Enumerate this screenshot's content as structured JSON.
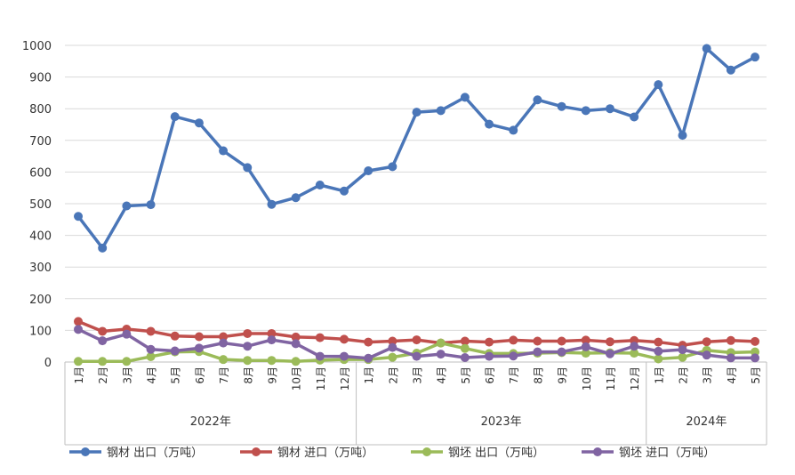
{
  "chart_data": {
    "type": "line",
    "title": "",
    "ylim": [
      0,
      1000
    ],
    "yticks": [
      0,
      100,
      200,
      300,
      400,
      500,
      600,
      700,
      800,
      900,
      1000
    ],
    "grid": true,
    "legend_position": "bottom",
    "groups": [
      {
        "label": "2022年",
        "months": [
          "1月",
          "2月",
          "3月",
          "4月",
          "5月",
          "6月",
          "7月",
          "8月",
          "9月",
          "10月",
          "11月",
          "12月"
        ]
      },
      {
        "label": "2023年",
        "months": [
          "1月",
          "2月",
          "3月",
          "4月",
          "5月",
          "6月",
          "7月",
          "8月",
          "9月",
          "10月",
          "11月",
          "12月"
        ]
      },
      {
        "label": "2024年",
        "months": [
          "1月",
          "2月",
          "3月",
          "4月",
          "5月"
        ]
      }
    ],
    "series": [
      {
        "name": "钢材 出口（万吨）",
        "color": "#4a76b8",
        "values": [
          460,
          360,
          493,
          497,
          775,
          755,
          667,
          614,
          498,
          519,
          559,
          540,
          604,
          617,
          789,
          794,
          836,
          751,
          732,
          828,
          807,
          794,
          800,
          774,
          876,
          716,
          990,
          922,
          963
        ]
      },
      {
        "name": "钢材 进口（万吨）",
        "color": "#c0504d",
        "values": [
          128,
          97,
          104,
          97,
          82,
          80,
          80,
          90,
          90,
          79,
          77,
          72,
          63,
          66,
          70,
          60,
          66,
          63,
          69,
          66,
          66,
          69,
          64,
          68,
          63,
          53,
          64,
          68,
          65
        ]
      },
      {
        "name": "钢坯 出口（万吨）",
        "color": "#9bbb59",
        "values": [
          2,
          2,
          2,
          17,
          32,
          33,
          8,
          5,
          5,
          2,
          6,
          8,
          8,
          15,
          28,
          60,
          43,
          27,
          27,
          28,
          30,
          28,
          29,
          28,
          10,
          15,
          37,
          30,
          32
        ]
      },
      {
        "name": "钢坯 进口（万吨）",
        "color": "#8064a2",
        "values": [
          103,
          67,
          88,
          40,
          35,
          44,
          60,
          50,
          70,
          58,
          18,
          18,
          12,
          46,
          18,
          25,
          14,
          18,
          19,
          32,
          32,
          48,
          26,
          50,
          34,
          39,
          22,
          13,
          13
        ]
      }
    ]
  }
}
